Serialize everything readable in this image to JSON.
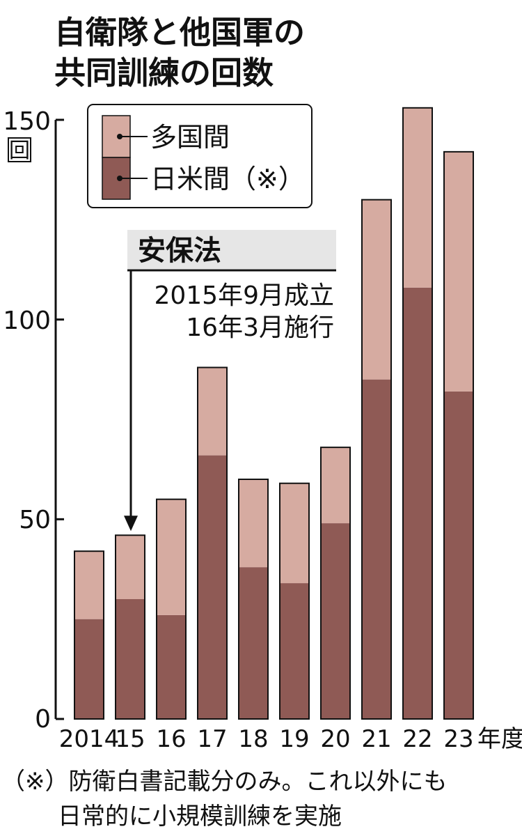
{
  "chart_data": {
    "type": "bar",
    "stacked": true,
    "title_lines": [
      "自衛隊と他国軍の",
      "共同訓練の回数"
    ],
    "unit": "回",
    "categories": [
      "2014",
      "15",
      "16",
      "17",
      "18",
      "19",
      "20",
      "21",
      "22",
      "23"
    ],
    "x_suffix": "年度",
    "series": [
      {
        "name": "日米間（※）",
        "color": "#8f5a55",
        "values": [
          25,
          30,
          26,
          66,
          38,
          34,
          49,
          85,
          108,
          82
        ]
      },
      {
        "name": "多国間",
        "color": "#d6aba1",
        "values": [
          17,
          16,
          29,
          22,
          22,
          25,
          19,
          45,
          45,
          60
        ]
      }
    ],
    "y_ticks": [
      0,
      50,
      100,
      150
    ],
    "ylim": [
      0,
      150
    ],
    "legend_position": "top-left",
    "legend_entries": [
      "多国間",
      "日米間（※）"
    ],
    "annotation": {
      "title": "安保法",
      "lines": [
        "2015年9月成立",
        "16年3月施行"
      ],
      "target_category": "15"
    },
    "footnote_lines": [
      "（※）防衛白書記載分のみ。これ以外にも",
      "日常的に小規模訓練を実施"
    ]
  }
}
